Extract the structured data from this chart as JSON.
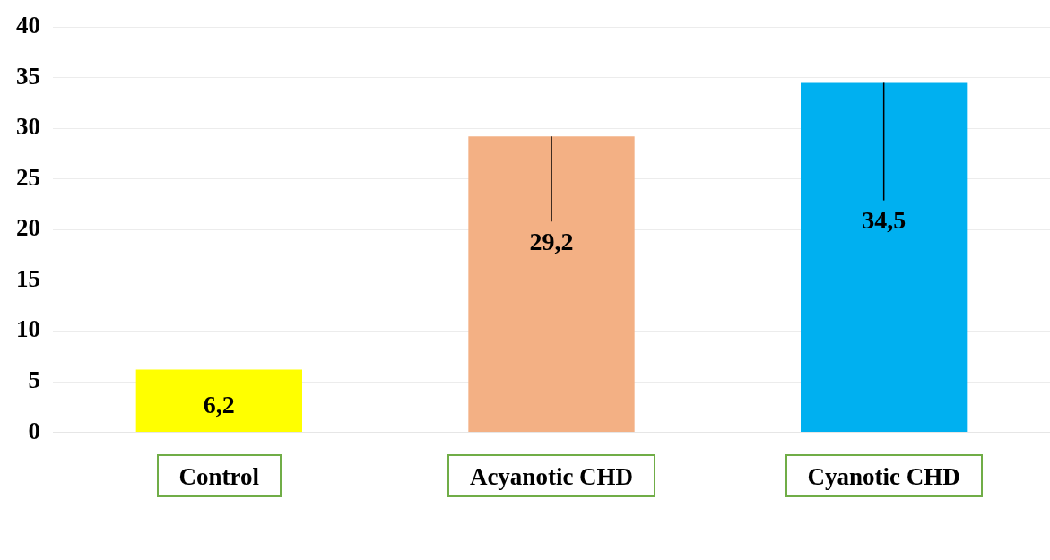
{
  "chart_data": {
    "type": "bar",
    "categories": [
      "Control",
      "Acyanotic CHD",
      "Cyanotic CHD"
    ],
    "values": [
      6.2,
      29.2,
      34.5
    ],
    "colors": [
      "#ffff00",
      "#f3b084",
      "#00b0f0"
    ],
    "errors": [
      null,
      [
        20.8,
        29.2
      ],
      [
        22.9,
        34.5
      ]
    ],
    "value_labels": [
      "6,2",
      "29,2",
      "34,5"
    ],
    "ylim": [
      0,
      40
    ],
    "yticks": [
      0,
      5,
      10,
      15,
      20,
      25,
      30,
      35,
      40
    ],
    "grid": "y",
    "legend": false
  }
}
